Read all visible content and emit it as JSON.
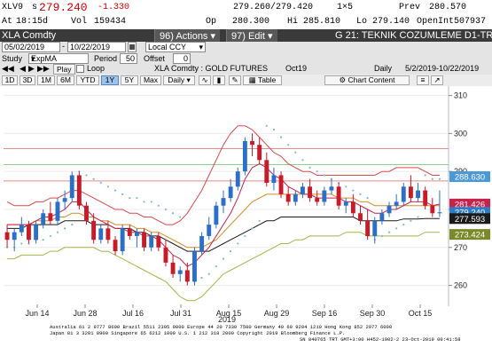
{
  "quote": {
    "ticker": "XLV9",
    "s_label": "s",
    "last": "279.240",
    "change": "-1.330",
    "bidask": "279.260/279.420",
    "size": "1×5",
    "prev_label": "Prev",
    "prev": "280.570",
    "at_label": "At",
    "time": "18:15d",
    "vol_label": "Vol",
    "vol": "159434",
    "op_label": "Op",
    "open": "280.300",
    "hi_label": "Hi",
    "hi": "285.810",
    "lo_label": "Lo",
    "lo": "279.140",
    "oi_label": "OpenInt",
    "oi": "507937"
  },
  "command": {
    "security": "XLA Comdty",
    "actions": "Actions",
    "edit": "Edit",
    "function_title": "G 21: TEKNIK COZUMLEME D1-TRE"
  },
  "dates": {
    "start": "05/02/2019",
    "end": "10/22/2019",
    "currency": "Local CCY"
  },
  "study": {
    "label": "Study",
    "value": "ExpMA",
    "period_label": "Period",
    "period": "50",
    "offset_label": "Offset",
    "offset": "0"
  },
  "playbar": {
    "play": "Play",
    "loop": "Loop",
    "security_desc": "XLA Comdty : GOLD FUTURES",
    "contract": "Oct19",
    "freq": "Daily",
    "range": "5/2/2019-10/22/2019"
  },
  "tabs": [
    "1D",
    "3D",
    "1M",
    "6M",
    "YTD",
    "1Y",
    "5Y",
    "Max",
    "Daily"
  ],
  "selected_tab": "1Y",
  "tools": {
    "table": "Table",
    "chart_content": "Chart Content"
  },
  "chart_data": {
    "type": "candlestick",
    "ylim": [
      255,
      312
    ],
    "y_ticks": [
      260,
      270,
      280,
      290,
      300,
      310
    ],
    "x_ticks": [
      "Jun 14",
      "Jun 28",
      "Jul 16",
      "Jul 31",
      "Aug 15",
      "Aug 29",
      "Sep 16",
      "Sep 30",
      "Oct 15"
    ],
    "x_year": "2019",
    "horizontal_levels": [
      {
        "value": 296,
        "color": "#e88a8a"
      },
      {
        "value": 291.8,
        "color": "#8fd08f"
      },
      {
        "value": 287.5,
        "color": "#e88a8a"
      }
    ],
    "price_labels": [
      {
        "text": "288.630",
        "value": 288.63,
        "bg": "#4a98d8",
        "fg": "#ffffff"
      },
      {
        "text": "281.426",
        "value": 281.426,
        "bg": "#c8214a",
        "fg": "#ffffff"
      },
      {
        "text": "279.240",
        "value": 279.24,
        "bg": "#2e7cc8",
        "fg": "#ffffff"
      },
      {
        "text": "277.593",
        "value": 277.593,
        "bg": "#1a1a1a",
        "fg": "#ffffff"
      },
      {
        "text": "273.424",
        "value": 273.424,
        "bg": "#7a8a2a",
        "fg": "#ffffff"
      }
    ],
    "candles": [
      {
        "o": 274,
        "h": 276,
        "l": 270,
        "c": 272
      },
      {
        "o": 272,
        "h": 275,
        "l": 269,
        "c": 274
      },
      {
        "o": 274,
        "h": 278,
        "l": 273,
        "c": 276
      },
      {
        "o": 276,
        "h": 277,
        "l": 271,
        "c": 272
      },
      {
        "o": 272,
        "h": 277,
        "l": 271,
        "c": 276
      },
      {
        "o": 276,
        "h": 280,
        "l": 275,
        "c": 279
      },
      {
        "o": 279,
        "h": 282,
        "l": 276,
        "c": 277
      },
      {
        "o": 277,
        "h": 283,
        "l": 276,
        "c": 282
      },
      {
        "o": 282,
        "h": 285,
        "l": 280,
        "c": 283
      },
      {
        "o": 283,
        "h": 290,
        "l": 282,
        "c": 289
      },
      {
        "o": 289,
        "h": 290,
        "l": 280,
        "c": 281
      },
      {
        "o": 281,
        "h": 282,
        "l": 276,
        "c": 277
      },
      {
        "o": 277,
        "h": 279,
        "l": 271,
        "c": 272
      },
      {
        "o": 272,
        "h": 276,
        "l": 271,
        "c": 275
      },
      {
        "o": 275,
        "h": 277,
        "l": 271,
        "c": 272
      },
      {
        "o": 272,
        "h": 273,
        "l": 268,
        "c": 269
      },
      {
        "o": 269,
        "h": 276,
        "l": 268,
        "c": 275
      },
      {
        "o": 275,
        "h": 276,
        "l": 272,
        "c": 273
      },
      {
        "o": 273,
        "h": 275,
        "l": 270,
        "c": 274
      },
      {
        "o": 274,
        "h": 275,
        "l": 269,
        "c": 270
      },
      {
        "o": 270,
        "h": 274,
        "l": 269,
        "c": 273
      },
      {
        "o": 273,
        "h": 274,
        "l": 269,
        "c": 270
      },
      {
        "o": 270,
        "h": 272,
        "l": 265,
        "c": 266
      },
      {
        "o": 266,
        "h": 268,
        "l": 262,
        "c": 263
      },
      {
        "o": 263,
        "h": 265,
        "l": 261,
        "c": 264
      },
      {
        "o": 264,
        "h": 266,
        "l": 260,
        "c": 261
      },
      {
        "o": 261,
        "h": 270,
        "l": 260,
        "c": 269
      },
      {
        "o": 269,
        "h": 274,
        "l": 268,
        "c": 273
      },
      {
        "o": 273,
        "h": 278,
        "l": 272,
        "c": 276
      },
      {
        "o": 276,
        "h": 282,
        "l": 275,
        "c": 281
      },
      {
        "o": 281,
        "h": 285,
        "l": 279,
        "c": 283
      },
      {
        "o": 283,
        "h": 288,
        "l": 282,
        "c": 286
      },
      {
        "o": 286,
        "h": 291,
        "l": 285,
        "c": 290
      },
      {
        "o": 290,
        "h": 299,
        "l": 289,
        "c": 298
      },
      {
        "o": 298,
        "h": 300,
        "l": 294,
        "c": 297
      },
      {
        "o": 297,
        "h": 299,
        "l": 292,
        "c": 293
      },
      {
        "o": 293,
        "h": 295,
        "l": 286,
        "c": 287
      },
      {
        "o": 287,
        "h": 291,
        "l": 285,
        "c": 289
      },
      {
        "o": 289,
        "h": 290,
        "l": 283,
        "c": 284
      },
      {
        "o": 284,
        "h": 286,
        "l": 281,
        "c": 282
      },
      {
        "o": 282,
        "h": 285,
        "l": 281,
        "c": 284
      },
      {
        "o": 284,
        "h": 287,
        "l": 283,
        "c": 286
      },
      {
        "o": 286,
        "h": 288,
        "l": 282,
        "c": 283
      },
      {
        "o": 283,
        "h": 285,
        "l": 281,
        "c": 282
      },
      {
        "o": 282,
        "h": 286,
        "l": 281,
        "c": 285
      },
      {
        "o": 285,
        "h": 288,
        "l": 284,
        "c": 286
      },
      {
        "o": 286,
        "h": 287,
        "l": 280,
        "c": 281
      },
      {
        "o": 281,
        "h": 283,
        "l": 279,
        "c": 282
      },
      {
        "o": 282,
        "h": 284,
        "l": 278,
        "c": 279
      },
      {
        "o": 279,
        "h": 281,
        "l": 276,
        "c": 277
      },
      {
        "o": 277,
        "h": 280,
        "l": 272,
        "c": 273
      },
      {
        "o": 273,
        "h": 278,
        "l": 271,
        "c": 277
      },
      {
        "o": 277,
        "h": 280,
        "l": 276,
        "c": 279
      },
      {
        "o": 279,
        "h": 282,
        "l": 278,
        "c": 281
      },
      {
        "o": 281,
        "h": 284,
        "l": 280,
        "c": 282
      },
      {
        "o": 282,
        "h": 287,
        "l": 281,
        "c": 286
      },
      {
        "o": 286,
        "h": 289,
        "l": 282,
        "c": 283
      },
      {
        "o": 283,
        "h": 287,
        "l": 282,
        "c": 285
      },
      {
        "o": 285,
        "h": 286,
        "l": 280,
        "c": 281
      },
      {
        "o": 281,
        "h": 283,
        "l": 278,
        "c": 279
      },
      {
        "o": 279,
        "h": 285,
        "l": 278,
        "c": 279.24
      }
    ],
    "series": [
      {
        "color": "#d94a4a",
        "values": [
          282,
          281,
          281,
          281,
          282,
          282,
          283,
          283,
          284,
          285,
          285,
          284,
          283,
          282,
          281,
          280,
          280,
          279,
          279,
          278,
          278,
          277,
          276,
          276,
          277,
          279,
          282,
          285,
          289,
          293,
          297,
          300,
          302,
          302,
          301,
          299,
          297,
          295,
          294,
          292,
          291,
          290,
          290,
          289,
          289,
          289,
          289,
          289,
          289,
          289,
          289,
          289,
          290,
          290,
          291,
          291,
          291,
          291,
          290,
          289,
          289
        ]
      },
      {
        "color": "#a9b34a",
        "values": [
          267,
          267,
          268,
          268,
          268,
          268,
          269,
          269,
          270,
          270,
          270,
          270,
          270,
          269,
          269,
          268,
          267,
          266,
          265,
          264,
          263,
          262,
          261,
          259,
          257,
          256,
          256,
          257,
          259,
          261,
          263,
          264,
          265,
          266,
          267,
          268,
          269,
          270,
          271,
          271,
          272,
          272,
          273,
          273,
          273,
          273,
          273,
          274,
          274,
          274,
          273,
          273,
          273,
          273,
          273,
          273,
          273,
          273,
          274,
          274,
          274
        ]
      },
      {
        "color": "#1a1a1a",
        "values": [
          275,
          275,
          275,
          276,
          276,
          276,
          276,
          276,
          277,
          277,
          277,
          277,
          276,
          276,
          276,
          275,
          275,
          275,
          274,
          274,
          273,
          273,
          272,
          271,
          270,
          269,
          269,
          269,
          269,
          270,
          271,
          272,
          273,
          274,
          275,
          276,
          277,
          277,
          278,
          278,
          278,
          278,
          278,
          278,
          278,
          278,
          278,
          278,
          278,
          277,
          277,
          277,
          277,
          277,
          277,
          277.5,
          277.5,
          277.5,
          277.6,
          277.6,
          277.6
        ]
      },
      {
        "color": "#d58b2a",
        "values": [
          276,
          276,
          276,
          276,
          277,
          277,
          277,
          278,
          278,
          279,
          279,
          278,
          278,
          277,
          277,
          276,
          276,
          276,
          275,
          275,
          274,
          274,
          273,
          272,
          271,
          270,
          270,
          270,
          271,
          272,
          274,
          276,
          278,
          280,
          282,
          283,
          284,
          284,
          284,
          284,
          284,
          284,
          284,
          284,
          284,
          284,
          283,
          283,
          283,
          282,
          282,
          281,
          281,
          281,
          281,
          281,
          281,
          281,
          281,
          281,
          281
        ]
      },
      {
        "color": "#c8214a",
        "values": [
          276,
          276,
          276,
          276,
          277,
          278,
          278,
          279,
          280,
          282,
          282,
          280,
          278,
          277,
          276,
          275,
          275,
          274,
          274,
          273,
          273,
          272,
          270,
          268,
          267,
          265,
          266,
          268,
          270,
          273,
          276,
          279,
          283,
          288,
          291,
          292,
          291,
          289,
          288,
          286,
          285,
          284,
          284,
          283,
          283,
          283,
          283,
          282,
          282,
          281,
          280,
          279,
          279,
          280,
          280,
          281,
          282,
          282,
          282,
          281,
          281.4
        ]
      },
      {
        "color": "#7fb6e0",
        "dotted": true,
        "values": [
          270,
          270,
          271,
          271,
          272,
          272,
          273,
          274,
          275,
          276,
          290,
          289,
          288,
          287,
          286,
          285,
          284,
          283,
          283,
          282,
          282,
          281,
          280,
          279,
          278,
          261,
          261,
          262,
          263,
          265,
          267,
          269,
          271,
          273,
          275,
          277,
          302,
          301,
          299,
          297,
          295,
          293,
          291,
          290,
          289,
          288,
          287,
          286,
          285,
          284,
          283,
          272,
          273,
          274,
          275,
          276,
          277,
          278,
          289,
          288,
          288
        ]
      }
    ]
  },
  "footer": {
    "line1": "Australia 61 2 9777 8600 Brazil 5511 2395 9000 Europe 44 20 7330 7500 Germany 49 69 9204 1210 Hong Kong 852 2977 6000",
    "line2": "Japan 81 3 3201 8900          Singapore 65 6212 1000          U.S. 1 212 318 2000          Copyright 2019 Bloomberg Finance L.P.",
    "line3": "SN 840765 TRT  GMT+3:00 H452-1902-2 23-Oct-2019 00:41:58"
  }
}
